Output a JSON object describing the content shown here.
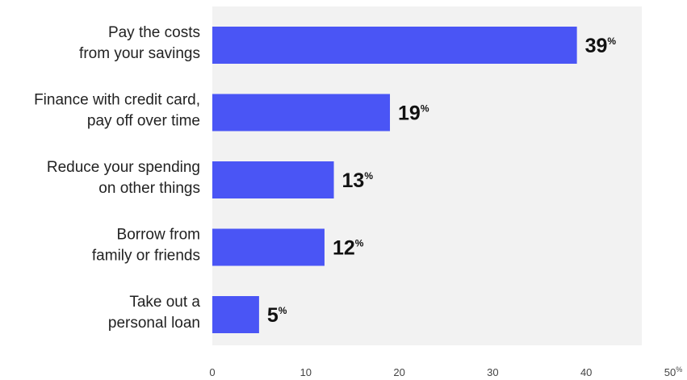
{
  "chart_data": {
    "type": "bar",
    "orientation": "horizontal",
    "categories": [
      [
        "Pay the costs",
        "from your savings"
      ],
      [
        "Finance with credit card,",
        "pay off over time"
      ],
      [
        "Reduce your spending",
        "on other things"
      ],
      [
        "Borrow from",
        "family or friends"
      ],
      [
        "Take out a",
        "personal loan"
      ]
    ],
    "values": [
      39,
      19,
      13,
      12,
      5
    ],
    "value_suffix": "%",
    "xlim": [
      0,
      50
    ],
    "x_ticks": [
      "0",
      "10",
      "20",
      "30",
      "40",
      "50%"
    ],
    "grid": false,
    "colors": {
      "bar": "#4a55f5",
      "plot_background": "#f2f2f2",
      "page_background": "#ffffff"
    }
  }
}
